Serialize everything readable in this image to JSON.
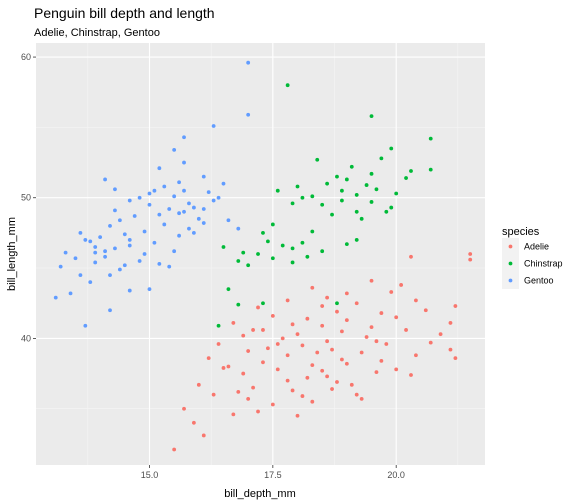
{
  "chart_data": {
    "type": "scatter",
    "title": "Penguin bill depth and length",
    "subtitle": "Adelie, Chinstrap, Gentoo",
    "xlabel": "bill_depth_mm",
    "ylabel": "bill_length_mm",
    "xlim": [
      12.7,
      21.8
    ],
    "ylim": [
      31.0,
      61.0
    ],
    "x_ticks": [
      15.0,
      17.5,
      20.0
    ],
    "x_tick_labels": [
      "15.0",
      "17.5",
      "20.0"
    ],
    "y_ticks": [
      40,
      50,
      60
    ],
    "y_tick_labels": [
      "40",
      "50",
      "60"
    ],
    "grid": true,
    "legend_position": "right",
    "legend_title": "species",
    "series": [
      {
        "name": "Adelie",
        "color": "#F8766D",
        "points": [
          [
            15.5,
            32.1
          ],
          [
            16.1,
            33.1
          ],
          [
            15.9,
            34.0
          ],
          [
            16.7,
            34.6
          ],
          [
            17.2,
            34.8
          ],
          [
            15.7,
            35.0
          ],
          [
            17.5,
            35.3
          ],
          [
            18.3,
            35.5
          ],
          [
            19.3,
            35.7
          ],
          [
            17.0,
            35.7
          ],
          [
            18.1,
            35.9
          ],
          [
            16.3,
            36.0
          ],
          [
            16.8,
            36.2
          ],
          [
            17.9,
            36.3
          ],
          [
            18.7,
            36.4
          ],
          [
            17.1,
            36.5
          ],
          [
            16.0,
            36.7
          ],
          [
            19.1,
            36.7
          ],
          [
            17.8,
            37.0
          ],
          [
            18.6,
            37.3
          ],
          [
            16.9,
            37.5
          ],
          [
            19.6,
            37.6
          ],
          [
            18.5,
            37.7
          ],
          [
            17.6,
            37.8
          ],
          [
            20.0,
            37.8
          ],
          [
            16.6,
            38.0
          ],
          [
            18.3,
            38.1
          ],
          [
            19.0,
            38.2
          ],
          [
            17.3,
            38.3
          ],
          [
            18.9,
            38.5
          ],
          [
            16.2,
            38.6
          ],
          [
            21.2,
            38.6
          ],
          [
            17.8,
            38.8
          ],
          [
            20.4,
            38.8
          ],
          [
            18.4,
            39.0
          ],
          [
            19.3,
            39.0
          ],
          [
            17.0,
            39.1
          ],
          [
            18.7,
            39.2
          ],
          [
            21.1,
            39.2
          ],
          [
            17.4,
            39.3
          ],
          [
            18.1,
            39.5
          ],
          [
            19.8,
            39.6
          ],
          [
            16.4,
            39.6
          ],
          [
            20.7,
            39.7
          ],
          [
            18.6,
            39.8
          ],
          [
            17.7,
            40.0
          ],
          [
            19.4,
            40.1
          ],
          [
            16.9,
            40.2
          ],
          [
            20.9,
            40.3
          ],
          [
            18.0,
            40.3
          ],
          [
            18.9,
            40.5
          ],
          [
            17.3,
            40.6
          ],
          [
            20.2,
            40.6
          ],
          [
            19.5,
            40.8
          ],
          [
            18.5,
            40.9
          ],
          [
            17.9,
            41.0
          ],
          [
            21.1,
            41.1
          ],
          [
            16.7,
            41.1
          ],
          [
            19.0,
            41.3
          ],
          [
            18.2,
            41.4
          ],
          [
            20.0,
            41.5
          ],
          [
            17.5,
            41.6
          ],
          [
            19.7,
            41.8
          ],
          [
            18.8,
            41.9
          ],
          [
            20.6,
            42.0
          ],
          [
            17.2,
            42.2
          ],
          [
            18.5,
            42.3
          ],
          [
            21.2,
            42.3
          ],
          [
            19.2,
            42.5
          ],
          [
            17.8,
            42.7
          ],
          [
            20.4,
            42.7
          ],
          [
            18.6,
            42.9
          ],
          [
            19.0,
            43.2
          ],
          [
            19.9,
            43.3
          ],
          [
            18.3,
            43.6
          ],
          [
            20.1,
            43.8
          ],
          [
            19.5,
            44.1
          ],
          [
            21.5,
            45.6
          ],
          [
            20.3,
            45.8
          ],
          [
            21.5,
            46.0
          ],
          [
            18.8,
            36.9
          ],
          [
            17.6,
            39.6
          ],
          [
            19.6,
            39.8
          ],
          [
            16.5,
            37.9
          ],
          [
            18.2,
            37.2
          ],
          [
            19.7,
            38.4
          ],
          [
            20.3,
            37.4
          ],
          [
            17.1,
            40.6
          ],
          [
            19.2,
            36.0
          ],
          [
            18.0,
            34.5
          ]
        ]
      },
      {
        "name": "Chinstrap",
        "color": "#00BA38",
        "points": [
          [
            16.4,
            40.9
          ],
          [
            16.8,
            42.4
          ],
          [
            17.3,
            42.5
          ],
          [
            18.8,
            42.5
          ],
          [
            16.6,
            43.5
          ],
          [
            17.0,
            45.2
          ],
          [
            17.9,
            45.4
          ],
          [
            16.8,
            45.5
          ],
          [
            17.5,
            45.7
          ],
          [
            18.2,
            45.8
          ],
          [
            17.2,
            46.0
          ],
          [
            16.9,
            46.1
          ],
          [
            18.5,
            46.2
          ],
          [
            17.9,
            46.4
          ],
          [
            16.5,
            46.5
          ],
          [
            17.7,
            46.6
          ],
          [
            19.0,
            46.7
          ],
          [
            18.1,
            46.8
          ],
          [
            17.4,
            46.9
          ],
          [
            19.2,
            47.0
          ],
          [
            17.3,
            47.5
          ],
          [
            18.3,
            47.6
          ],
          [
            17.5,
            48.1
          ],
          [
            19.3,
            48.5
          ],
          [
            18.7,
            48.8
          ],
          [
            19.2,
            49.0
          ],
          [
            19.8,
            49.0
          ],
          [
            19.9,
            49.3
          ],
          [
            18.5,
            49.5
          ],
          [
            17.9,
            49.6
          ],
          [
            19.5,
            49.7
          ],
          [
            18.1,
            50.0
          ],
          [
            19.2,
            50.2
          ],
          [
            20.0,
            50.3
          ],
          [
            18.9,
            50.5
          ],
          [
            19.6,
            50.6
          ],
          [
            18.0,
            50.8
          ],
          [
            19.4,
            50.9
          ],
          [
            18.6,
            51.0
          ],
          [
            19.0,
            51.3
          ],
          [
            20.2,
            51.4
          ],
          [
            18.8,
            51.5
          ],
          [
            19.5,
            51.7
          ],
          [
            20.7,
            52.0
          ],
          [
            19.1,
            52.2
          ],
          [
            18.4,
            52.7
          ],
          [
            19.9,
            53.5
          ],
          [
            20.7,
            54.2
          ],
          [
            19.5,
            55.8
          ],
          [
            17.8,
            58.0
          ],
          [
            18.3,
            50.1
          ],
          [
            19.7,
            52.8
          ],
          [
            18.9,
            49.8
          ],
          [
            17.6,
            50.5
          ],
          [
            20.3,
            51.9
          ]
        ]
      },
      {
        "name": "Gentoo",
        "color": "#619CFF",
        "points": [
          [
            13.1,
            42.9
          ],
          [
            13.7,
            40.9
          ],
          [
            13.4,
            43.2
          ],
          [
            14.2,
            42.0
          ],
          [
            13.8,
            44.0
          ],
          [
            14.6,
            43.4
          ],
          [
            13.6,
            44.5
          ],
          [
            15.0,
            43.5
          ],
          [
            14.4,
            44.9
          ],
          [
            13.2,
            45.1
          ],
          [
            14.5,
            45.2
          ],
          [
            15.2,
            45.3
          ],
          [
            13.9,
            45.4
          ],
          [
            14.8,
            45.5
          ],
          [
            13.5,
            45.7
          ],
          [
            14.1,
            45.8
          ],
          [
            14.9,
            46.0
          ],
          [
            13.3,
            46.1
          ],
          [
            15.5,
            46.2
          ],
          [
            14.3,
            46.4
          ],
          [
            13.9,
            46.5
          ],
          [
            14.6,
            46.6
          ],
          [
            15.1,
            46.8
          ],
          [
            13.7,
            47.0
          ],
          [
            14.0,
            47.2
          ],
          [
            15.6,
            47.3
          ],
          [
            14.5,
            47.4
          ],
          [
            13.6,
            47.5
          ],
          [
            14.9,
            47.6
          ],
          [
            15.8,
            47.8
          ],
          [
            14.2,
            48.0
          ],
          [
            15.3,
            48.1
          ],
          [
            14.4,
            48.4
          ],
          [
            16.0,
            48.5
          ],
          [
            14.7,
            48.7
          ],
          [
            15.2,
            48.8
          ],
          [
            15.7,
            49.0
          ],
          [
            14.3,
            49.1
          ],
          [
            16.1,
            49.2
          ],
          [
            15.0,
            49.5
          ],
          [
            15.8,
            49.6
          ],
          [
            14.6,
            49.8
          ],
          [
            16.4,
            50.0
          ],
          [
            15.5,
            50.1
          ],
          [
            15.0,
            50.3
          ],
          [
            16.2,
            50.4
          ],
          [
            15.7,
            50.5
          ],
          [
            14.3,
            50.6
          ],
          [
            15.3,
            50.8
          ],
          [
            16.5,
            51.0
          ],
          [
            15.6,
            51.1
          ],
          [
            14.1,
            51.3
          ],
          [
            16.1,
            51.5
          ],
          [
            15.2,
            52.1
          ],
          [
            15.7,
            52.5
          ],
          [
            15.5,
            53.4
          ],
          [
            15.7,
            54.3
          ],
          [
            16.3,
            55.1
          ],
          [
            17.0,
            55.9
          ],
          [
            17.0,
            59.6
          ],
          [
            16.3,
            49.8
          ],
          [
            15.9,
            47.5
          ],
          [
            13.9,
            46.1
          ],
          [
            14.2,
            44.5
          ],
          [
            15.4,
            45.1
          ],
          [
            16.6,
            48.4
          ],
          [
            14.8,
            50.0
          ],
          [
            15.4,
            49.2
          ],
          [
            13.8,
            46.9
          ],
          [
            16.1,
            48.2
          ],
          [
            15.1,
            50.5
          ],
          [
            14.6,
            47.0
          ],
          [
            15.9,
            49.3
          ],
          [
            16.8,
            47.8
          ],
          [
            14.1,
            46.2
          ],
          [
            15.6,
            48.9
          ]
        ]
      }
    ]
  }
}
